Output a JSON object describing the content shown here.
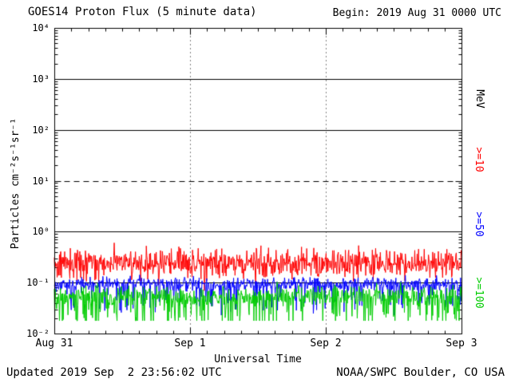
{
  "header": {
    "title": "GOES14 Proton Flux (5 minute data)",
    "begin": "Begin: 2019 Aug 31 0000 UTC"
  },
  "footer": {
    "updated": "Updated 2019 Sep  2 23:56:02 UTC",
    "source": "NOAA/SWPC Boulder, CO USA"
  },
  "chart_data": {
    "type": "line",
    "title": "GOES14 Proton Flux (5 minute data)",
    "xlabel": "Universal Time",
    "ylabel": "Particles cm⁻²s⁻¹sr⁻¹",
    "right_axis_label": "MeV",
    "y_scale": "log",
    "ylim": [
      0.01,
      10000
    ],
    "y_tick_labels": [
      "10⁻²",
      "10⁻¹",
      "10⁰",
      "10¹",
      "10²",
      "10³",
      "10⁴"
    ],
    "x_tick_labels": [
      "Aug 31",
      "Sep 1",
      "Sep 2",
      "Sep 3"
    ],
    "days": 3,
    "points_per_day": 288,
    "grid": {
      "hlines_solid": [
        0.1,
        1,
        100,
        1000
      ],
      "hline_dashed": [
        10
      ],
      "vline_dotted_days": [
        1,
        2
      ]
    },
    "colors": {
      "axis": "#000000",
      "background": "#ffffff"
    },
    "series": [
      {
        "label": ">=10",
        "color": "#ff0000",
        "baseline": 0.24,
        "jitter": 0.28,
        "spike_prob": 0.03,
        "spike_depth": 0.22,
        "seed": 42
      },
      {
        "label": ">=50",
        "color": "#0000ff",
        "baseline": 0.095,
        "jitter": 0.13,
        "spike_prob": 0.1,
        "spike_depth": 0.4,
        "seed": 1337
      },
      {
        "label": ">=100",
        "color": "#00cc00",
        "baseline": 0.055,
        "jitter": 0.2,
        "spike_prob": 0.17,
        "spike_depth": 0.5,
        "seed": 2024
      }
    ]
  }
}
